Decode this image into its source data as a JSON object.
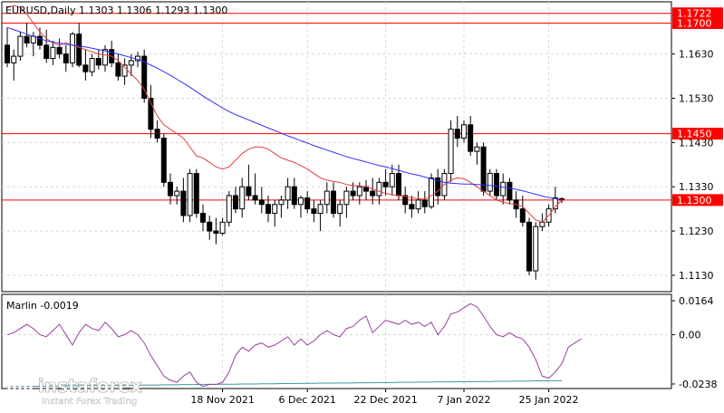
{
  "header": {
    "symbol_line": "EURUSD,Daily  1.1303 1.1306 1.1293 1.1300"
  },
  "chart_data": {
    "type": "candlestick",
    "price_axis": {
      "ylim": [
        1.1093,
        1.1748
      ],
      "ticks": [
        {
          "label": "1.1630",
          "value": 1.163
        },
        {
          "label": "1.1530",
          "value": 1.153
        },
        {
          "label": "1.1430",
          "value": 1.143
        },
        {
          "label": "1.1330",
          "value": 1.133
        },
        {
          "label": "1.1230",
          "value": 1.123
        },
        {
          "label": "1.1130",
          "value": 1.113
        }
      ]
    },
    "levels": [
      {
        "label": "1.1722",
        "value": 1.1722,
        "color": "#ff0000"
      },
      {
        "label": "1.1700",
        "value": 1.17,
        "color": "#ff0000"
      },
      {
        "label": "1.1450",
        "value": 1.145,
        "color": "#ff0000"
      },
      {
        "label": "1.1300",
        "value": 1.13,
        "color": "#ff0000"
      }
    ],
    "date_labels": [
      {
        "label": "18 Nov 2021",
        "index": 33
      },
      {
        "label": "6 Dec 2021",
        "index": 46
      },
      {
        "label": "22 Dec 2021",
        "index": 58
      },
      {
        "label": "7 Jan 2022",
        "index": 70
      },
      {
        "label": "25 Jan 2022",
        "index": 83
      }
    ],
    "candles": [
      [
        1.165,
        1.169,
        1.16,
        1.161
      ],
      [
        1.161,
        1.164,
        1.157,
        1.1625
      ],
      [
        1.1625,
        1.168,
        1.1615,
        1.167
      ],
      [
        1.167,
        1.17,
        1.1645,
        1.1655
      ],
      [
        1.1655,
        1.168,
        1.1625,
        1.167
      ],
      [
        1.167,
        1.169,
        1.164,
        1.165
      ],
      [
        1.165,
        1.1685,
        1.161,
        1.162
      ],
      [
        1.162,
        1.166,
        1.1605,
        1.1645
      ],
      [
        1.1645,
        1.1665,
        1.162,
        1.163
      ],
      [
        1.163,
        1.165,
        1.159,
        1.161
      ],
      [
        1.161,
        1.168,
        1.16,
        1.1675
      ],
      [
        1.1675,
        1.17,
        1.16,
        1.1605
      ],
      [
        1.1605,
        1.164,
        1.157,
        1.159
      ],
      [
        1.159,
        1.163,
        1.158,
        1.162
      ],
      [
        1.162,
        1.164,
        1.1595,
        1.1605
      ],
      [
        1.1605,
        1.165,
        1.159,
        1.164
      ],
      [
        1.164,
        1.166,
        1.16,
        1.161
      ],
      [
        1.161,
        1.163,
        1.157,
        1.158
      ],
      [
        1.158,
        1.162,
        1.156,
        1.1605
      ],
      [
        1.1605,
        1.163,
        1.158,
        1.1615
      ],
      [
        1.1615,
        1.1635,
        1.16,
        1.1625
      ],
      [
        1.1625,
        1.164,
        1.152,
        1.153
      ],
      [
        1.153,
        1.156,
        1.144,
        1.146
      ],
      [
        1.146,
        1.148,
        1.143,
        1.144
      ],
      [
        1.144,
        1.145,
        1.133,
        1.134
      ],
      [
        1.134,
        1.136,
        1.129,
        1.131
      ],
      [
        1.131,
        1.133,
        1.129,
        1.132
      ],
      [
        1.132,
        1.135,
        1.125,
        1.1265
      ],
      [
        1.1265,
        1.137,
        1.125,
        1.136
      ],
      [
        1.136,
        1.137,
        1.126,
        1.127
      ],
      [
        1.127,
        1.129,
        1.123,
        1.125
      ],
      [
        1.125,
        1.1265,
        1.121,
        1.123
      ],
      [
        1.123,
        1.126,
        1.12,
        1.1225
      ],
      [
        1.1225,
        1.126,
        1.122,
        1.125
      ],
      [
        1.125,
        1.132,
        1.124,
        1.131
      ],
      [
        1.131,
        1.133,
        1.127,
        1.128
      ],
      [
        1.128,
        1.135,
        1.126,
        1.133
      ],
      [
        1.133,
        1.138,
        1.13,
        1.131
      ],
      [
        1.131,
        1.136,
        1.129,
        1.13
      ],
      [
        1.13,
        1.133,
        1.127,
        1.129
      ],
      [
        1.129,
        1.131,
        1.125,
        1.127
      ],
      [
        1.127,
        1.13,
        1.124,
        1.129
      ],
      [
        1.129,
        1.131,
        1.126,
        1.13
      ],
      [
        1.13,
        1.135,
        1.128,
        1.133
      ],
      [
        1.133,
        1.135,
        1.128,
        1.129
      ],
      [
        1.129,
        1.131,
        1.126,
        1.1305
      ],
      [
        1.1305,
        1.132,
        1.127,
        1.128
      ],
      [
        1.128,
        1.13,
        1.125,
        1.127
      ],
      [
        1.127,
        1.13,
        1.123,
        1.129
      ],
      [
        1.129,
        1.134,
        1.127,
        1.132
      ],
      [
        1.132,
        1.134,
        1.126,
        1.127
      ],
      [
        1.127,
        1.13,
        1.124,
        1.129
      ],
      [
        1.129,
        1.133,
        1.126,
        1.132
      ],
      [
        1.132,
        1.134,
        1.13,
        1.131
      ],
      [
        1.131,
        1.134,
        1.129,
        1.133
      ],
      [
        1.133,
        1.1345,
        1.13,
        1.132
      ],
      [
        1.132,
        1.135,
        1.129,
        1.131
      ],
      [
        1.131,
        1.135,
        1.129,
        1.134
      ],
      [
        1.134,
        1.137,
        1.131,
        1.133
      ],
      [
        1.133,
        1.138,
        1.131,
        1.136
      ],
      [
        1.136,
        1.138,
        1.13,
        1.131
      ],
      [
        1.131,
        1.133,
        1.127,
        1.129
      ],
      [
        1.129,
        1.131,
        1.126,
        1.128
      ],
      [
        1.128,
        1.132,
        1.127,
        1.13
      ],
      [
        1.13,
        1.132,
        1.127,
        1.1285
      ],
      [
        1.1285,
        1.136,
        1.128,
        1.135
      ],
      [
        1.135,
        1.137,
        1.129,
        1.131
      ],
      [
        1.131,
        1.137,
        1.13,
        1.136
      ],
      [
        1.136,
        1.148,
        1.134,
        1.146
      ],
      [
        1.146,
        1.149,
        1.142,
        1.144
      ],
      [
        1.144,
        1.148,
        1.143,
        1.147
      ],
      [
        1.147,
        1.149,
        1.14,
        1.141
      ],
      [
        1.141,
        1.143,
        1.138,
        1.142
      ],
      [
        1.142,
        1.143,
        1.131,
        1.132
      ],
      [
        1.132,
        1.137,
        1.131,
        1.136
      ],
      [
        1.136,
        1.137,
        1.13,
        1.131
      ],
      [
        1.131,
        1.136,
        1.129,
        1.134
      ],
      [
        1.134,
        1.135,
        1.129,
        1.13
      ],
      [
        1.13,
        1.132,
        1.126,
        1.128
      ],
      [
        1.128,
        1.131,
        1.124,
        1.125
      ],
      [
        1.125,
        1.126,
        1.113,
        1.114
      ],
      [
        1.114,
        1.125,
        1.112,
        1.124
      ],
      [
        1.124,
        1.127,
        1.123,
        1.125
      ],
      [
        1.125,
        1.129,
        1.124,
        1.128
      ],
      [
        1.128,
        1.133,
        1.127,
        1.1305
      ],
      [
        1.1303,
        1.1306,
        1.1293,
        1.13
      ]
    ],
    "red_ma": [
      1.1735,
      1.174,
      1.1735,
      1.172,
      1.17,
      1.168,
      1.1665,
      1.1655,
      1.165,
      1.1655,
      1.165,
      1.1645,
      1.164,
      1.1635,
      1.163,
      1.1628,
      1.1625,
      1.1615,
      1.16,
      1.1585,
      1.157,
      1.155,
      1.152,
      1.149,
      1.147,
      1.146,
      1.145,
      1.144,
      1.142,
      1.14,
      1.1395,
      1.1385,
      1.1375,
      1.137,
      1.1375,
      1.139,
      1.1405,
      1.1415,
      1.142,
      1.142,
      1.1415,
      1.1405,
      1.1395,
      1.139,
      1.1385,
      1.1378,
      1.137,
      1.136,
      1.135,
      1.1345,
      1.1342,
      1.134,
      1.1335,
      1.1333,
      1.1332,
      1.133,
      1.1325,
      1.132,
      1.1315,
      1.1312,
      1.131,
      1.1308,
      1.1305,
      1.1303,
      1.1302,
      1.131,
      1.132,
      1.1335,
      1.1345,
      1.135,
      1.1348,
      1.134,
      1.133,
      1.132,
      1.131,
      1.13,
      1.1295,
      1.1292,
      1.129,
      1.1285,
      1.127,
      1.1255,
      1.125,
      1.1265,
      1.1285,
      1.13
    ],
    "blue_ma": [
      1.169,
      1.1685,
      1.168,
      1.1675,
      1.167,
      1.1665,
      1.166,
      1.1657,
      1.1655,
      1.1652,
      1.165,
      1.1648,
      1.1646,
      1.1643,
      1.164,
      1.1637,
      1.1634,
      1.163,
      1.1626,
      1.1622,
      1.1618,
      1.1612,
      1.1605,
      1.1598,
      1.159,
      1.1582,
      1.1573,
      1.1564,
      1.1555,
      1.1545,
      1.1535,
      1.1526,
      1.1517,
      1.1508,
      1.15,
      1.1493,
      1.1487,
      1.1481,
      1.1475,
      1.1469,
      1.1463,
      1.1457,
      1.1451,
      1.1445,
      1.144,
      1.1434,
      1.1429,
      1.1423,
      1.1418,
      1.1413,
      1.1408,
      1.1403,
      1.1398,
      1.1394,
      1.139,
      1.1386,
      1.1382,
      1.1378,
      1.1375,
      1.1371,
      1.1367,
      1.1363,
      1.1359,
      1.1356,
      1.1352,
      1.1348,
      1.1344,
      1.134,
      1.1338,
      1.1337,
      1.1336,
      1.1336,
      1.1335,
      1.1334,
      1.1333,
      1.1331,
      1.1329,
      1.1327,
      1.1324,
      1.1321,
      1.1317,
      1.1313,
      1.1309,
      1.1306,
      1.1303,
      1.13
    ]
  },
  "indicator": {
    "label": "Marlin -0.0019",
    "ylim": [
      -0.026,
      0.0195
    ],
    "ticks": [
      {
        "label": "0.0164",
        "value": 0.0164
      },
      {
        "label": "0.00",
        "value": 0.0
      },
      {
        "label": "-0.0238",
        "value": -0.0238
      }
    ],
    "purple": [
      0.0,
      0.001,
      0.003,
      0.005,
      0.003,
      0.0,
      -0.001,
      0.002,
      0.005,
      0.0,
      -0.005,
      0.001,
      0.005,
      0.003,
      0.002,
      0.006,
      0.003,
      -0.001,
      0.0,
      0.002,
      0.0,
      -0.004,
      -0.01,
      -0.015,
      -0.02,
      -0.022,
      -0.023,
      -0.02,
      -0.018,
      -0.023,
      -0.025,
      -0.024,
      -0.024,
      -0.023,
      -0.018,
      -0.01,
      -0.006,
      -0.008,
      -0.005,
      -0.004,
      -0.006,
      -0.005,
      -0.003,
      -0.001,
      -0.005,
      -0.002,
      -0.005,
      -0.003,
      0.0,
      0.002,
      0.0,
      -0.001,
      0.003,
      0.004,
      0.007,
      0.009,
      0.001,
      0.004,
      0.007,
      0.006,
      0.005,
      0.007,
      0.005,
      0.006,
      0.004,
      0.006,
      0.0,
      0.004,
      0.01,
      0.011,
      0.013,
      0.015,
      0.0135,
      0.009,
      0.004,
      0.0,
      -0.001,
      0.001,
      -0.001,
      -0.002,
      -0.006,
      -0.012,
      -0.02,
      -0.021,
      -0.018,
      -0.014,
      -0.006,
      -0.004,
      -0.0019
    ],
    "teal": [
      -0.025,
      -0.025,
      -0.025,
      -0.0249,
      -0.0249,
      -0.0249,
      -0.0248,
      -0.0248,
      -0.0248,
      -0.0247,
      -0.0247,
      -0.0247,
      -0.0246,
      -0.0246,
      -0.0246,
      -0.0245,
      -0.0245,
      -0.0245,
      -0.0244,
      -0.0244,
      -0.0244,
      -0.0243,
      -0.0243,
      -0.0243,
      -0.0242,
      -0.0242,
      -0.0242,
      -0.0241,
      -0.0241,
      -0.0241,
      -0.024,
      -0.024,
      -0.024,
      -0.0239,
      -0.0239,
      -0.0239,
      -0.0238,
      -0.0238,
      -0.0238,
      -0.0237,
      -0.0237,
      -0.0237,
      -0.0236,
      -0.0236,
      -0.0236,
      -0.0235,
      -0.0235,
      -0.0235,
      -0.0234,
      -0.0234,
      -0.0234,
      -0.0233,
      -0.0233,
      -0.0233,
      -0.0232,
      -0.0232,
      -0.0232,
      -0.0231,
      -0.0231,
      -0.0231,
      -0.023,
      -0.023,
      -0.023,
      -0.0229,
      -0.0229,
      -0.0229,
      -0.0228,
      -0.0228,
      -0.0228,
      -0.0227,
      -0.0227,
      -0.0227,
      -0.0226,
      -0.0226,
      -0.0226,
      -0.0225,
      -0.0225,
      -0.0225,
      -0.0224,
      -0.0224,
      -0.0224,
      -0.0223,
      -0.0223,
      -0.0223,
      -0.0222,
      -0.0222
    ]
  },
  "watermark": {
    "brand": "instaforex",
    "tagline": "Instant Forex Trading"
  },
  "colors": {
    "bullish_body": "#ffffff",
    "bearish_body": "#000000",
    "red_line": "#ff0000",
    "red_ma": "#e04040",
    "blue_ma": "#3030ff",
    "purple_line": "#9b3fa0",
    "teal_line": "#3a9aa0",
    "grid": "#d8d8d8"
  }
}
